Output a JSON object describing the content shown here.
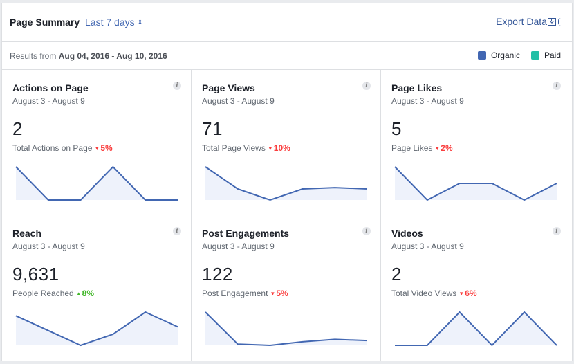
{
  "header": {
    "title": "Page Summary",
    "date_range": "Last 7 days",
    "range_arrows": "⬍",
    "export_label": "Export Data"
  },
  "subheader": {
    "results_prefix": "Results from",
    "results_range": "Aug 04, 2016 - Aug 10, 2016",
    "legend": [
      {
        "label": "Organic",
        "color": "#4267b2"
      },
      {
        "label": "Paid",
        "color": "#23bfa6"
      }
    ]
  },
  "colors": {
    "line": "#4267b2",
    "fill": "#eef2fb",
    "down": "#fa3e3e",
    "up": "#42b72a"
  },
  "cards": [
    {
      "title": "Actions on Page",
      "date": "August 3 - August 9",
      "value": "2",
      "metric": "Total Actions on Page",
      "delta": "5%",
      "direction": "down",
      "series": [
        2,
        0,
        0,
        2,
        0,
        0
      ]
    },
    {
      "title": "Page Views",
      "date": "August 3 - August 9",
      "value": "71",
      "metric": "Total Page Views",
      "delta": "10%",
      "direction": "down",
      "series": [
        12.5,
        7.5,
        5,
        7.5,
        7.8,
        7.5
      ]
    },
    {
      "title": "Page Likes",
      "date": "August 3 - August 9",
      "value": "5",
      "metric": "Page Likes",
      "delta": "2%",
      "direction": "down",
      "series": [
        2,
        0,
        1,
        1,
        0,
        1
      ]
    },
    {
      "title": "Reach",
      "date": "August 3 - August 9",
      "value": "9,631",
      "metric": "People Reached",
      "delta": "8%",
      "direction": "up",
      "series": [
        1800,
        1400,
        1000,
        1300,
        1900,
        1500
      ]
    },
    {
      "title": "Post Engagements",
      "date": "August 3 - August 9",
      "value": "122",
      "metric": "Post Engagement",
      "delta": "5%",
      "direction": "down",
      "series": [
        32,
        5,
        4,
        7,
        9,
        8
      ]
    },
    {
      "title": "Videos",
      "date": "August 3 - August 9",
      "value": "2",
      "metric": "Total Video Views",
      "delta": "6%",
      "direction": "down",
      "series": [
        0,
        0,
        1,
        0,
        1,
        0
      ]
    }
  ],
  "info_glyph": "i",
  "tri_down": "▼",
  "tri_up": "▲"
}
